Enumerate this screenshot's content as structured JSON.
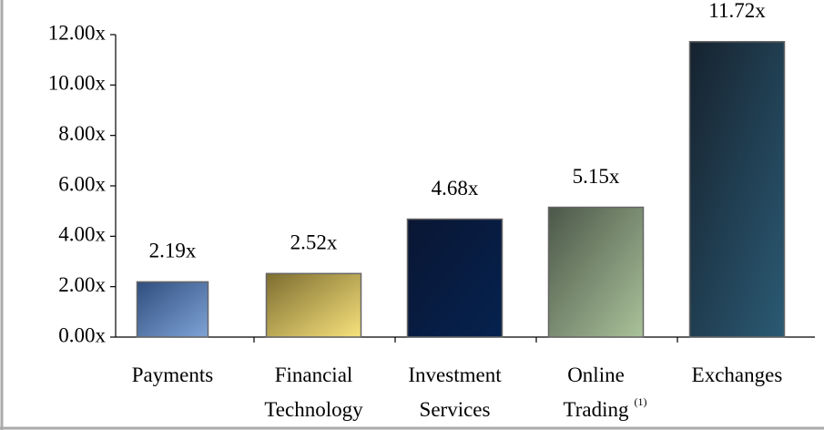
{
  "chart_data": {
    "type": "bar",
    "categories": [
      "Payments",
      "Financial Technology",
      "Investment Services",
      "Online Trading",
      "Exchanges"
    ],
    "footnote_markers": [
      null,
      null,
      null,
      "(1)",
      null
    ],
    "values": [
      2.19,
      2.52,
      4.68,
      5.15,
      11.72
    ],
    "value_labels": [
      "2.19x",
      "2.52x",
      "4.68x",
      "5.15x",
      "11.72x"
    ],
    "gradients": [
      [
        "#2f4e7e",
        "#7fa3d6"
      ],
      [
        "#7d6d30",
        "#f7e27c"
      ],
      [
        "#0a1633",
        "#05224f"
      ],
      [
        "#4b5749",
        "#aac29a"
      ],
      [
        "#16222e",
        "#2b5a74"
      ]
    ],
    "ylim": [
      0,
      12
    ],
    "yticks": [
      {
        "value": 0,
        "label": "0.00x"
      },
      {
        "value": 2,
        "label": "2.00x"
      },
      {
        "value": 4,
        "label": "4.00x"
      },
      {
        "value": 6,
        "label": "6.00x"
      },
      {
        "value": 8,
        "label": "8.00x"
      },
      {
        "value": 10,
        "label": "10.00x"
      },
      {
        "value": 12,
        "label": "12.00x"
      }
    ],
    "grid": false
  }
}
